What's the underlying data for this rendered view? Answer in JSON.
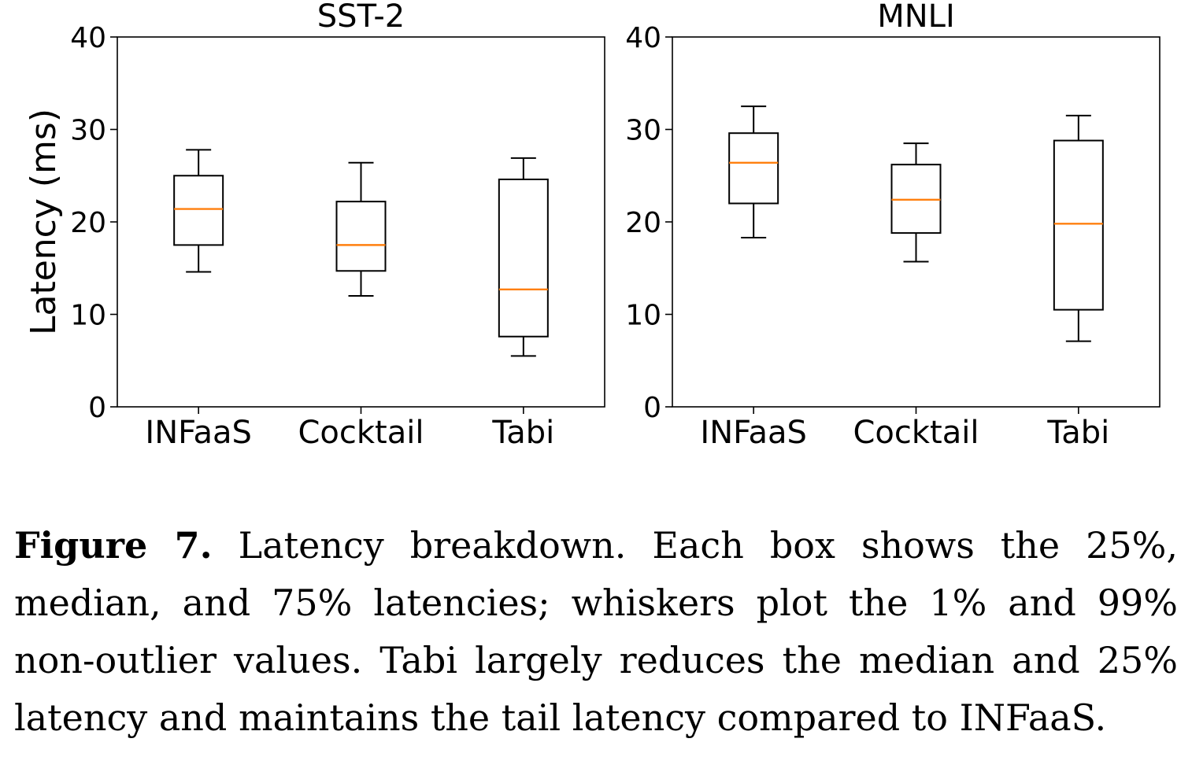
{
  "chart_data": [
    {
      "type": "box",
      "title": "SST-2",
      "ylabel": "Latency (ms)",
      "ylim": [
        0,
        40
      ],
      "yticks": [
        0,
        10,
        20,
        30,
        40
      ],
      "categories": [
        "INFaaS",
        "Cocktail",
        "Tabi"
      ],
      "boxes": [
        {
          "whislo": 14.6,
          "q1": 17.5,
          "med": 21.4,
          "q3": 25.0,
          "whishi": 27.8
        },
        {
          "whislo": 12.0,
          "q1": 14.7,
          "med": 17.5,
          "q3": 22.2,
          "whishi": 26.4
        },
        {
          "whislo": 5.5,
          "q1": 7.6,
          "med": 12.7,
          "q3": 24.6,
          "whishi": 26.9
        }
      ],
      "grid": false,
      "box_color": "#000000",
      "median_color": "#ff7f0e"
    },
    {
      "type": "box",
      "title": "MNLI",
      "ylabel": "",
      "ylim": [
        0,
        40
      ],
      "yticks": [
        0,
        10,
        20,
        30,
        40
      ],
      "categories": [
        "INFaaS",
        "Cocktail",
        "Tabi"
      ],
      "boxes": [
        {
          "whislo": 18.3,
          "q1": 22.0,
          "med": 26.4,
          "q3": 29.6,
          "whishi": 32.5
        },
        {
          "whislo": 15.7,
          "q1": 18.8,
          "med": 22.4,
          "q3": 26.2,
          "whishi": 28.5
        },
        {
          "whislo": 7.1,
          "q1": 10.5,
          "med": 19.8,
          "q3": 28.8,
          "whishi": 31.5
        }
      ],
      "grid": false,
      "box_color": "#000000",
      "median_color": "#ff7f0e"
    }
  ],
  "caption": {
    "label": "Figure 7.",
    "text": "Latency breakdown. Each box shows the 25%, median, and 75% latencies; whiskers plot the 1% and 99% non-outlier values. Tabi largely reduces the median and 25% latency and maintains the tail latency compared to INFaaS."
  }
}
